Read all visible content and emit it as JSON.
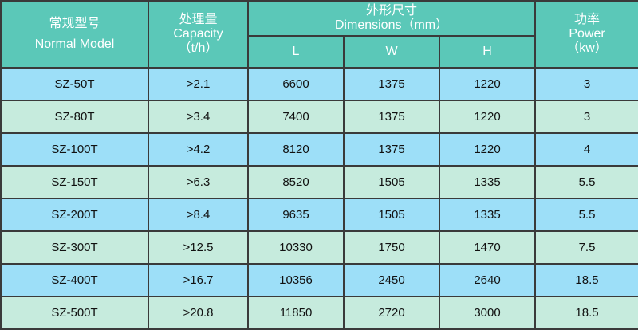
{
  "header": {
    "model": {
      "cn": "常规型号",
      "en": "Normal Model"
    },
    "capacity": {
      "cn": "处理量",
      "en": "Capacity",
      "unit": "（t/h）"
    },
    "dimensions": {
      "cn": "外形尺寸",
      "en": "Dimensions（mm）",
      "L": "L",
      "W": "W",
      "H": "H"
    },
    "power": {
      "cn": "功率",
      "en": "Power",
      "unit": "（kw）"
    }
  },
  "colors": {
    "header": "#5bc8b8",
    "row_blue": "#9ddff8",
    "row_green": "#c6ebdd"
  },
  "rows": [
    [
      "SZ-50T",
      ">2.1",
      "6600",
      "1375",
      "1220",
      "3"
    ],
    [
      "SZ-80T",
      ">3.4",
      "7400",
      "1375",
      "1220",
      "3"
    ],
    [
      "SZ-100T",
      ">4.2",
      "8120",
      "1375",
      "1220",
      "4"
    ],
    [
      "SZ-150T",
      ">6.3",
      "8520",
      "1505",
      "1335",
      "5.5"
    ],
    [
      "SZ-200T",
      ">8.4",
      "9635",
      "1505",
      "1335",
      "5.5"
    ],
    [
      "SZ-300T",
      ">12.5",
      "10330",
      "1750",
      "1470",
      "7.5"
    ],
    [
      "SZ-400T",
      ">16.7",
      "10356",
      "2450",
      "2640",
      "18.5"
    ],
    [
      "SZ-500T",
      ">20.8",
      "11850",
      "2720",
      "3000",
      "18.5"
    ]
  ]
}
